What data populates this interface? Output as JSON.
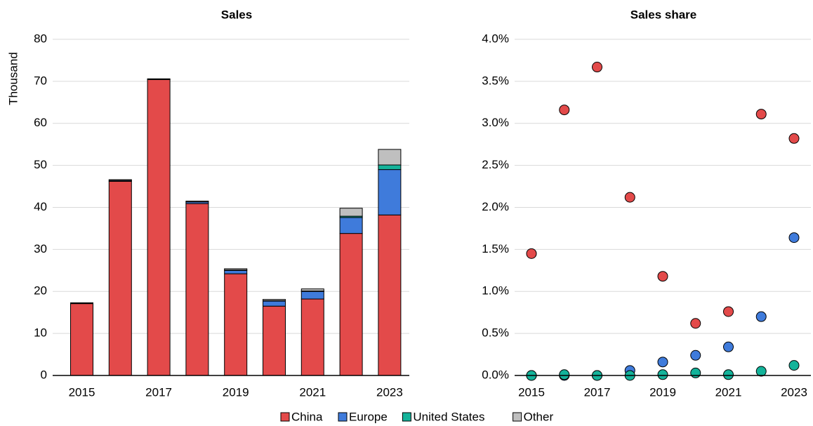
{
  "chart_data": [
    {
      "type": "bar",
      "stacked": true,
      "title": "Sales",
      "ylabel": "Thousand",
      "categories": [
        "2015",
        null,
        "2017",
        null,
        "2019",
        null,
        "2021",
        null,
        "2023"
      ],
      "series": [
        {
          "name": "China",
          "color": "#e34a4a",
          "values": [
            17.1,
            46.2,
            70.4,
            40.9,
            24.2,
            16.5,
            18.2,
            33.8,
            38.2
          ]
        },
        {
          "name": "Europe",
          "color": "#3f7bdb",
          "values": [
            0.1,
            0.2,
            0.1,
            0.4,
            0.8,
            1.2,
            1.8,
            3.8,
            10.8
          ]
        },
        {
          "name": "United States",
          "color": "#14b39a",
          "values": [
            0,
            0,
            0,
            0,
            0.1,
            0.1,
            0.1,
            0.3,
            1.1
          ]
        },
        {
          "name": "Other",
          "color": "#bfbfbf",
          "values": [
            0.1,
            0.2,
            0.1,
            0.2,
            0.3,
            0.3,
            0.5,
            1.9,
            3.7
          ]
        }
      ],
      "ylim": [
        0,
        80
      ],
      "yticks": [
        0,
        10,
        20,
        30,
        40,
        50,
        60,
        70,
        80
      ],
      "grid": true,
      "legend": "bottom"
    },
    {
      "type": "scatter",
      "title": "Sales share",
      "categories": [
        "2015",
        null,
        "2017",
        null,
        "2019",
        null,
        "2021",
        null,
        "2023"
      ],
      "series": [
        {
          "color": "#e34a4a",
          "values": [
            1.45,
            3.16,
            3.67,
            2.12,
            1.18,
            0.62,
            0.76,
            3.11,
            2.82
          ]
        },
        {
          "color": "#3f7bdb",
          "values": [
            0,
            0,
            0,
            0.06,
            0.16,
            0.24,
            0.34,
            0.7,
            1.64
          ]
        },
        {
          "color": "#14b39a",
          "values": [
            0,
            0.01,
            0,
            0,
            0.01,
            0.03,
            0.01,
            0.05,
            0.12
          ]
        }
      ],
      "ylim": [
        0,
        4
      ],
      "yticks": [
        {
          "value": 0,
          "label": "0.0%"
        },
        {
          "value": 0.5,
          "label": "0.5%"
        },
        {
          "value": 1,
          "label": "1.0%"
        },
        {
          "value": 1.5,
          "label": "1.5%"
        },
        {
          "value": 2,
          "label": "2.0%"
        },
        {
          "value": 2.5,
          "label": "2.5%"
        },
        {
          "value": 3,
          "label": "3.0%"
        },
        {
          "value": 3.5,
          "label": "3.5%"
        },
        {
          "value": 4,
          "label": "4.0%"
        }
      ],
      "grid": true
    }
  ]
}
